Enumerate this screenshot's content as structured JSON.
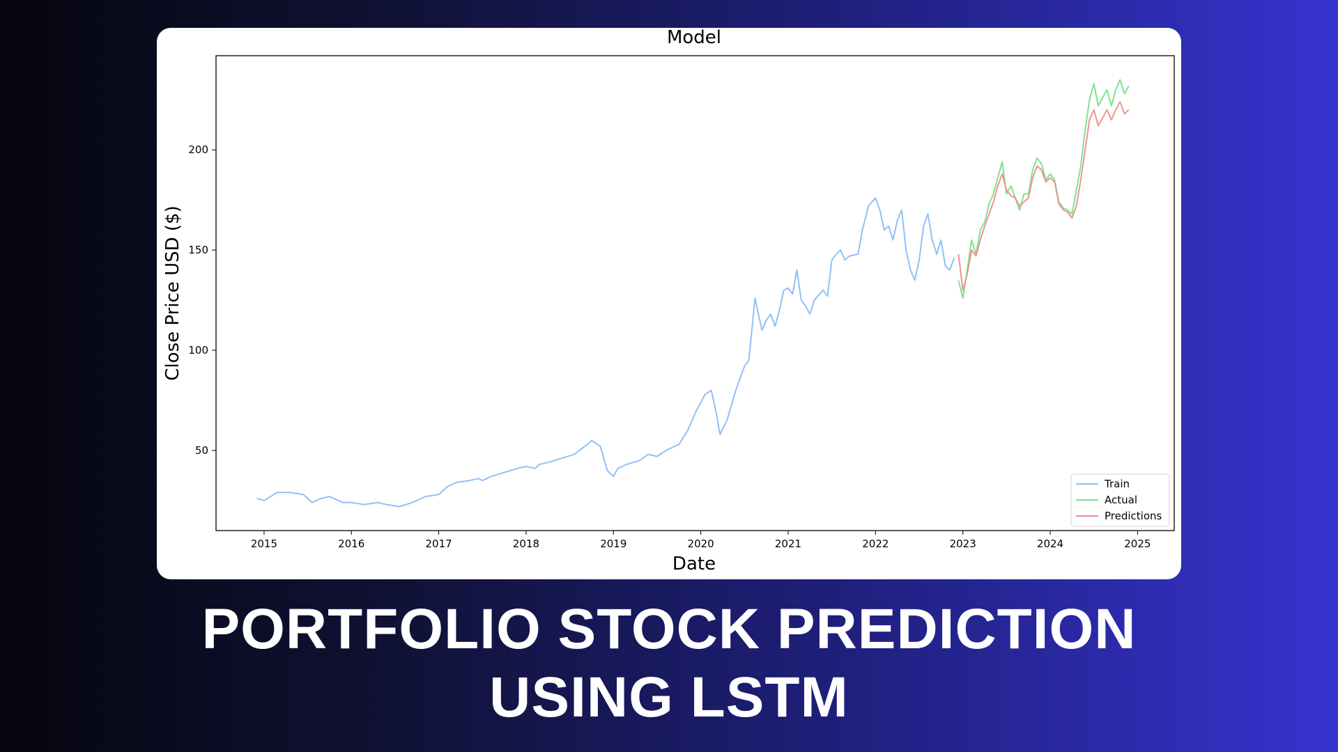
{
  "headline": {
    "line1": "PORTFOLIO STOCK PREDICTION",
    "line2": "USING LSTM"
  },
  "colors": {
    "train": "#8fc0f7",
    "actual": "#7de38f",
    "predictions": "#f0948f"
  },
  "chart_data": {
    "type": "line",
    "title": "Model",
    "xlabel": "Date",
    "ylabel": "Close Price USD ($)",
    "xlim": [
      2014.45,
      2025.42
    ],
    "ylim": [
      10,
      247
    ],
    "x_ticks": [
      2015,
      2016,
      2017,
      2018,
      2019,
      2020,
      2021,
      2022,
      2023,
      2024,
      2025
    ],
    "x_tick_labels": [
      "2015",
      "2016",
      "2017",
      "2018",
      "2019",
      "2020",
      "2021",
      "2022",
      "2023",
      "2024",
      "2025"
    ],
    "y_ticks": [
      50,
      100,
      150,
      200
    ],
    "y_tick_labels": [
      "50",
      "100",
      "150",
      "200"
    ],
    "grid": false,
    "legend_position": "lower-right",
    "series": [
      {
        "name": "Train",
        "x": [
          2014.92,
          2015.0,
          2015.15,
          2015.3,
          2015.45,
          2015.55,
          2015.65,
          2015.75,
          2015.9,
          2016.0,
          2016.15,
          2016.3,
          2016.4,
          2016.55,
          2016.7,
          2016.85,
          2017.0,
          2017.1,
          2017.2,
          2017.35,
          2017.45,
          2017.5,
          2017.6,
          2017.75,
          2017.9,
          2018.0,
          2018.1,
          2018.15,
          2018.25,
          2018.4,
          2018.55,
          2018.7,
          2018.75,
          2018.85,
          2018.93,
          2019.0,
          2019.05,
          2019.15,
          2019.3,
          2019.4,
          2019.5,
          2019.6,
          2019.75,
          2019.85,
          2019.95,
          2020.05,
          2020.12,
          2020.18,
          2020.22,
          2020.3,
          2020.4,
          2020.5,
          2020.55,
          2020.58,
          2020.62,
          2020.65,
          2020.7,
          2020.75,
          2020.8,
          2020.85,
          2020.9,
          2020.95,
          2021.0,
          2021.05,
          2021.1,
          2021.15,
          2021.2,
          2021.25,
          2021.3,
          2021.4,
          2021.45,
          2021.5,
          2021.55,
          2021.6,
          2021.65,
          2021.7,
          2021.8,
          2021.85,
          2021.92,
          2022.0,
          2022.05,
          2022.1,
          2022.15,
          2022.2,
          2022.25,
          2022.3,
          2022.35,
          2022.4,
          2022.45,
          2022.5,
          2022.55,
          2022.6,
          2022.65,
          2022.7,
          2022.75,
          2022.8,
          2022.85,
          2022.9
        ],
        "y": [
          26,
          25,
          29,
          29,
          28,
          24,
          26,
          27,
          24,
          24,
          23,
          24,
          23,
          22,
          24,
          27,
          28,
          32,
          34,
          35,
          36,
          35,
          37,
          39,
          41,
          42,
          41,
          43,
          44,
          46,
          48,
          53,
          55,
          52,
          40,
          37,
          41,
          43,
          45,
          48,
          47,
          50,
          53,
          60,
          70,
          78,
          80,
          68,
          58,
          65,
          80,
          92,
          95,
          108,
          126,
          120,
          110,
          115,
          118,
          112,
          120,
          130,
          131,
          128,
          140,
          125,
          122,
          118,
          125,
          130,
          127,
          145,
          148,
          150,
          145,
          147,
          148,
          160,
          172,
          176,
          170,
          160,
          162,
          155,
          165,
          170,
          150,
          140,
          135,
          145,
          162,
          168,
          155,
          148,
          155,
          142,
          140,
          146
        ]
      },
      {
        "name": "Actual",
        "x": [
          2022.95,
          2023.0,
          2023.05,
          2023.1,
          2023.15,
          2023.2,
          2023.25,
          2023.3,
          2023.35,
          2023.4,
          2023.45,
          2023.5,
          2023.55,
          2023.6,
          2023.65,
          2023.7,
          2023.75,
          2023.8,
          2023.85,
          2023.9,
          2023.95,
          2024.0,
          2024.05,
          2024.1,
          2024.15,
          2024.2,
          2024.25,
          2024.3,
          2024.35,
          2024.4,
          2024.45,
          2024.5,
          2024.55,
          2024.6,
          2024.65,
          2024.7,
          2024.75,
          2024.8,
          2024.85,
          2024.9
        ],
        "y": [
          135,
          126,
          140,
          155,
          148,
          160,
          164,
          173,
          178,
          186,
          194,
          178,
          182,
          176,
          170,
          178,
          178,
          190,
          196,
          193,
          185,
          188,
          185,
          174,
          171,
          170,
          168,
          180,
          192,
          210,
          225,
          233,
          222,
          226,
          230,
          222,
          230,
          235,
          228,
          232
        ]
      },
      {
        "name": "Predictions",
        "x": [
          2022.95,
          2023.0,
          2023.05,
          2023.1,
          2023.15,
          2023.2,
          2023.25,
          2023.3,
          2023.35,
          2023.4,
          2023.45,
          2023.5,
          2023.55,
          2023.6,
          2023.65,
          2023.7,
          2023.75,
          2023.8,
          2023.85,
          2023.9,
          2023.95,
          2024.0,
          2024.05,
          2024.1,
          2024.15,
          2024.2,
          2024.25,
          2024.3,
          2024.35,
          2024.4,
          2024.45,
          2024.5,
          2024.55,
          2024.6,
          2024.65,
          2024.7,
          2024.75,
          2024.8,
          2024.85,
          2024.9
        ],
        "y": [
          148,
          130,
          138,
          150,
          147,
          155,
          162,
          168,
          174,
          182,
          188,
          180,
          177,
          176,
          172,
          174,
          176,
          186,
          192,
          190,
          184,
          186,
          184,
          173,
          170,
          169,
          166,
          172,
          185,
          200,
          215,
          220,
          212,
          216,
          220,
          215,
          220,
          224,
          218,
          220
        ]
      }
    ]
  }
}
